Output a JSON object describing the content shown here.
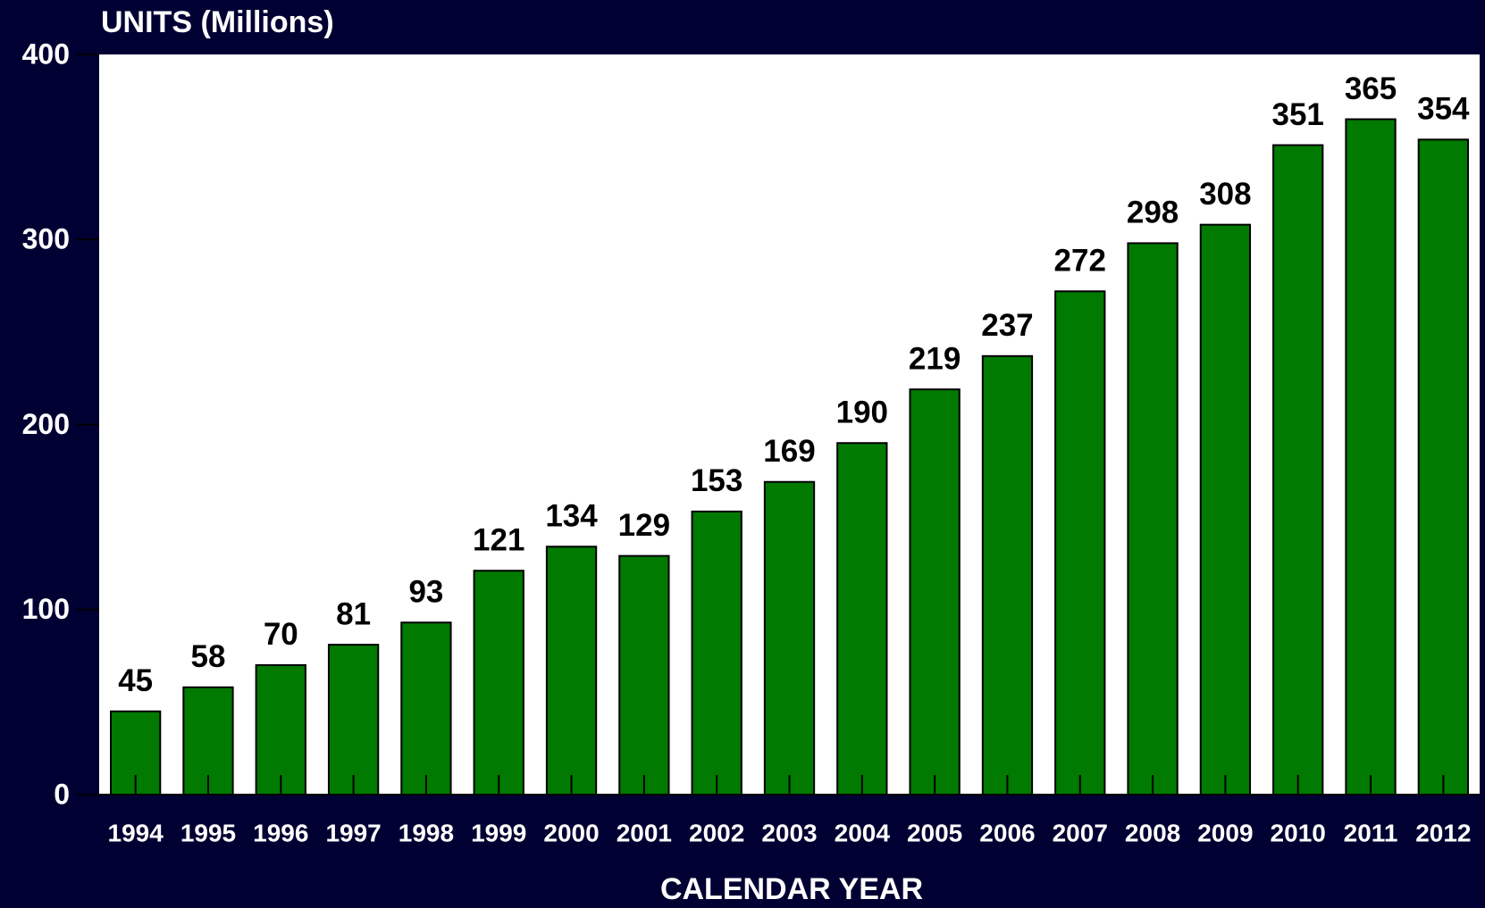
{
  "chart_data": {
    "type": "bar",
    "title": "UNITS (Millions)",
    "x_label": "CALENDAR YEAR",
    "categories": [
      "1994",
      "1995",
      "1996",
      "1997",
      "1998",
      "1999",
      "2000",
      "2001",
      "2002",
      "2003",
      "2004",
      "2005",
      "2006",
      "2007",
      "2008",
      "2009",
      "2010",
      "2011",
      "2012"
    ],
    "values": [
      45,
      58,
      70,
      81,
      93,
      121,
      134,
      129,
      153,
      169,
      190,
      219,
      237,
      272,
      298,
      308,
      351,
      365,
      354
    ],
    "color": "#007a00",
    "ylim": [
      0,
      400
    ],
    "yticks": [
      0,
      100,
      200,
      300,
      400
    ],
    "grid": false
  }
}
